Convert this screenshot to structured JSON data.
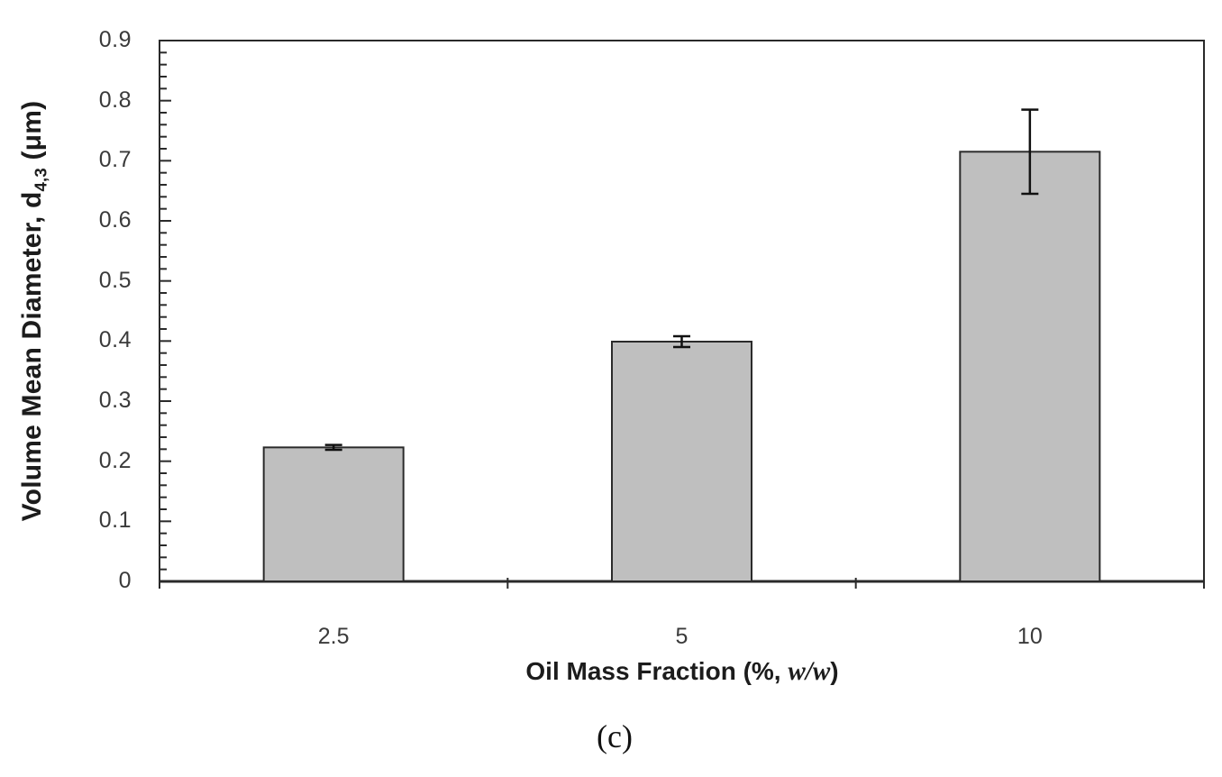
{
  "figure": {
    "caption": "(c)"
  },
  "chart_data": {
    "type": "bar",
    "title": "",
    "categories": [
      "2.5",
      "5",
      "10"
    ],
    "values": [
      0.223,
      0.399,
      0.715
    ],
    "errors": [
      0.004,
      0.009,
      0.07
    ],
    "xlabel_parts": {
      "prefix": "Oil Mass Fraction (%, ",
      "italic": "w/w",
      "suffix": ")"
    },
    "xlabel_text": "Oil Mass Fraction (%, w/w)",
    "ylabel_parts": {
      "prefix": "Volume Mean Diameter, d",
      "subscript": "4,3",
      "suffix": " (μm)"
    },
    "ylabel_text": "Volume Mean Diameter, d4,3 (μm)",
    "ylim": [
      0,
      0.9
    ],
    "y_major_step": 0.1,
    "y_minor_step": 0.02,
    "y_tick_labels": [
      "0",
      "0.1",
      "0.2",
      "0.3",
      "0.4",
      "0.5",
      "0.6",
      "0.7",
      "0.8",
      "0.9"
    ],
    "grid": false,
    "legend": null,
    "colors": {
      "bar_fill": "#bfbfbf",
      "bar_border": "#2b2b2b",
      "axis": "#2a2a2a",
      "error_bar": "#111111",
      "tick_label": "#3a3a3a",
      "title_text": "#1c1c1c"
    }
  }
}
